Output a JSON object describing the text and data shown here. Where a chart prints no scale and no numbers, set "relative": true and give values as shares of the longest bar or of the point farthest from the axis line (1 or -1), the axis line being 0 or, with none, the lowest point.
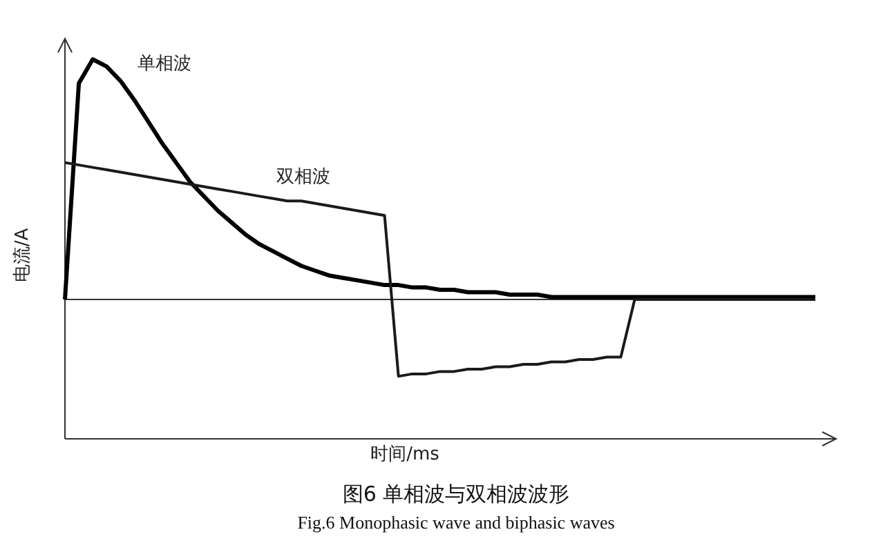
{
  "chart_data": {
    "type": "line",
    "title": "图6 单相波与双相波波形",
    "subtitle": "Fig.6 Monophasic wave and biphasic waves",
    "xlabel": "时间/ms",
    "ylabel": "电流/A",
    "relative": true,
    "marker": "none",
    "line_style": "solid",
    "categories": [
      null,
      null,
      null,
      null,
      null,
      null,
      null,
      null,
      null,
      null,
      null,
      null,
      null,
      null,
      null,
      null,
      null,
      null,
      null,
      null,
      null,
      null,
      null,
      null,
      null,
      null,
      null,
      null,
      null,
      null,
      null,
      null,
      null,
      null,
      null,
      null,
      null,
      null,
      null,
      null,
      null,
      null,
      null,
      null,
      null,
      null,
      null,
      null,
      null,
      null,
      null,
      null,
      null,
      null,
      null
    ],
    "series": [
      {
        "name": "单相波",
        "color": "#000000",
        "values": [
          0,
          0.9,
          1.0,
          0.97,
          0.91,
          0.83,
          0.74,
          0.65,
          0.57,
          0.49,
          0.43,
          0.37,
          0.32,
          0.27,
          0.23,
          0.2,
          0.17,
          0.14,
          0.12,
          0.1,
          0.09,
          0.08,
          0.07,
          0.06,
          0.06,
          0.05,
          0.05,
          0.04,
          0.04,
          0.03,
          0.03,
          0.03,
          0.02,
          0.02,
          0.02,
          0.01,
          0.01,
          0.01,
          0.01,
          0.01,
          0.01,
          0.01,
          0.01,
          0.01,
          0.01,
          0.01,
          0.01,
          0.01,
          0.01,
          0.01,
          0.01,
          0.01,
          0.01,
          0.01,
          0.01
        ]
      },
      {
        "name": "双相波",
        "color": "#1a1a1a",
        "values": [
          0.57,
          0.56,
          0.55,
          0.54,
          0.53,
          0.52,
          0.51,
          0.5,
          0.49,
          0.48,
          0.47,
          0.46,
          0.45,
          0.44,
          0.43,
          0.42,
          0.41,
          0.41,
          0.4,
          0.39,
          0.38,
          0.37,
          0.36,
          0.35,
          -0.32,
          -0.31,
          -0.31,
          -0.3,
          -0.3,
          -0.29,
          -0.29,
          -0.28,
          -0.28,
          -0.27,
          -0.27,
          -0.26,
          -0.26,
          -0.25,
          -0.25,
          -0.24,
          -0.24,
          0,
          0,
          0,
          0,
          0,
          0,
          0,
          0,
          0,
          0,
          0,
          0,
          0,
          0
        ]
      }
    ]
  }
}
